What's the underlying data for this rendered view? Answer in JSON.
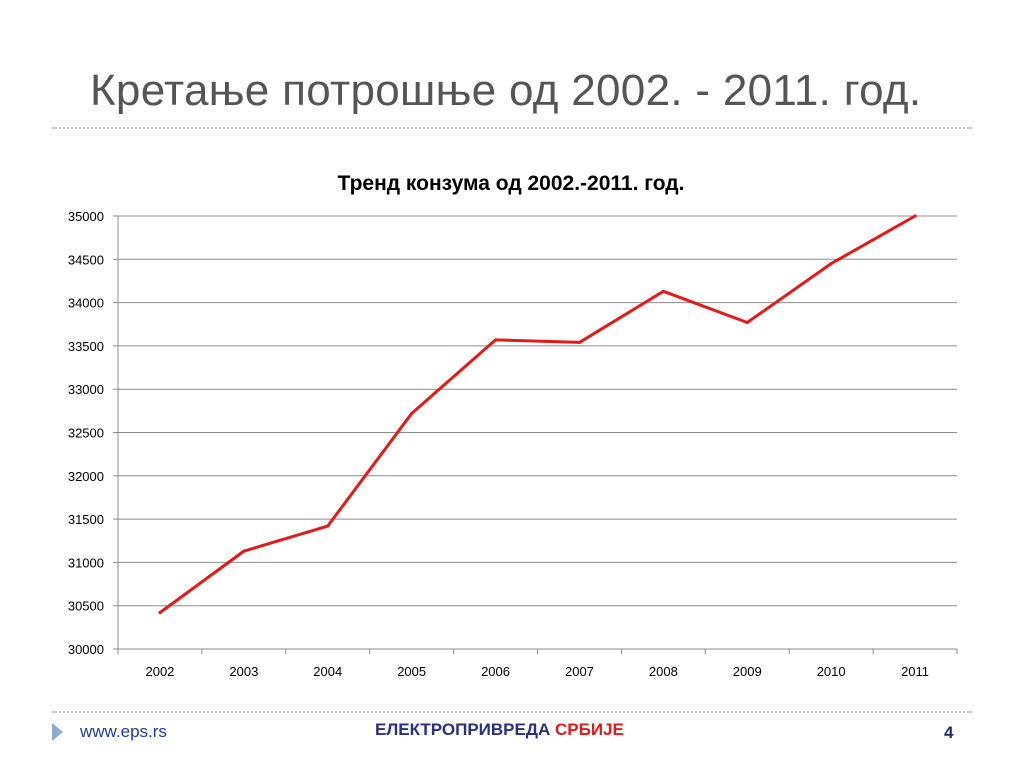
{
  "slide": {
    "title": "Кретање потрошње од 2002. - 2011. год."
  },
  "chart_data": {
    "type": "line",
    "title": "Тренд  конзума од 2002.-2011. год.",
    "xlabel": "",
    "ylabel": "",
    "categories": [
      "2002",
      "2003",
      "2004",
      "2005",
      "2006",
      "2007",
      "2008",
      "2009",
      "2010",
      "2011"
    ],
    "series": [
      {
        "values": [
          30420,
          31130,
          31420,
          32720,
          33570,
          33540,
          34130,
          33770,
          34450,
          35000
        ],
        "color": "#e3191b"
      }
    ],
    "ylim": [
      30000,
      35000
    ],
    "yticks": [
      "30000",
      "30500",
      "31000",
      "31500",
      "32000",
      "32500",
      "33000",
      "33500",
      "34000",
      "34500",
      "35000"
    ],
    "grid": true,
    "legend": "none"
  },
  "footer": {
    "url": "www.eps.rs",
    "org_part1": "ЕЛЕКТРОПРИВРЕДА",
    "org_part2": "СРБИЈЕ",
    "page_number": "4",
    "brand_blue": "#2b2e83",
    "brand_red": "#e3191b"
  }
}
